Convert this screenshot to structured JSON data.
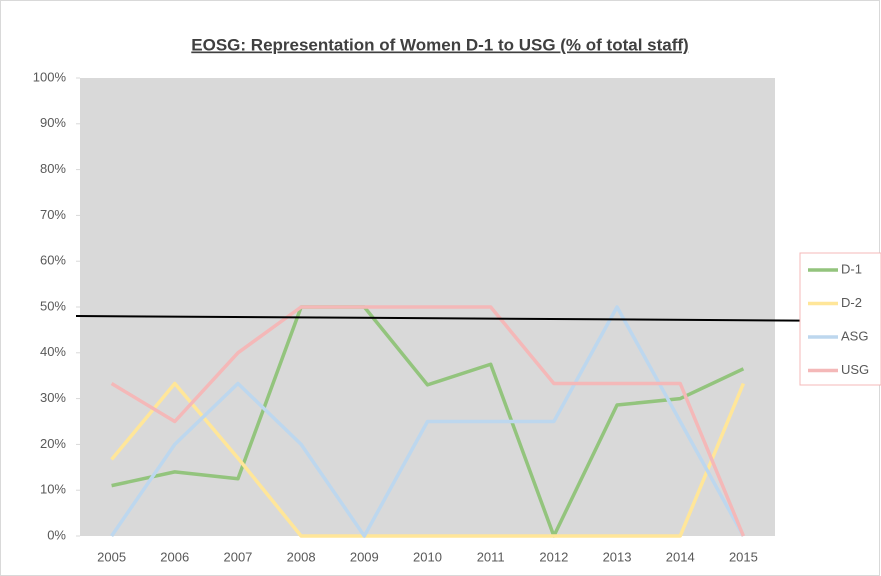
{
  "chart_data": {
    "type": "line",
    "title": "EOSG: Representation of Women D-1 to USG (% of total staff)",
    "categories": [
      "2005",
      "2006",
      "2007",
      "2008",
      "2009",
      "2010",
      "2011",
      "2012",
      "2013",
      "2014",
      "2015"
    ],
    "series": [
      {
        "name": "D-1",
        "color": "#93c47d",
        "values": [
          11,
          14,
          12.5,
          50,
          50,
          33,
          37.5,
          0,
          28.6,
          30,
          36.5
        ]
      },
      {
        "name": "D-2",
        "color": "#ffe699",
        "values": [
          16.7,
          33.3,
          17,
          0,
          0,
          0,
          0,
          0,
          0,
          0,
          33.3
        ]
      },
      {
        "name": "ASG",
        "color": "#bdd7ee",
        "values": [
          0,
          20,
          33.3,
          20,
          0,
          25,
          25,
          25,
          50,
          25,
          0
        ]
      },
      {
        "name": "USG",
        "color": "#f4b8b8",
        "values": [
          33.3,
          25,
          40,
          50,
          50,
          50,
          50,
          33.3,
          33.3,
          33.3,
          0
        ]
      }
    ],
    "ylim": [
      0,
      100
    ],
    "yticks": [
      {
        "value": 0,
        "label": "0%"
      },
      {
        "value": 10,
        "label": "10%"
      },
      {
        "value": 20,
        "label": "20%"
      },
      {
        "value": 30,
        "label": "30%"
      },
      {
        "value": 40,
        "label": "40%"
      },
      {
        "value": 50,
        "label": "50%"
      },
      {
        "value": 60,
        "label": "60%"
      },
      {
        "value": 70,
        "label": "70%"
      },
      {
        "value": 80,
        "label": "80%"
      },
      {
        "value": 90,
        "label": "90%"
      },
      {
        "value": 100,
        "label": "100%"
      }
    ],
    "legend": "right",
    "background": "#d9d9d9"
  }
}
